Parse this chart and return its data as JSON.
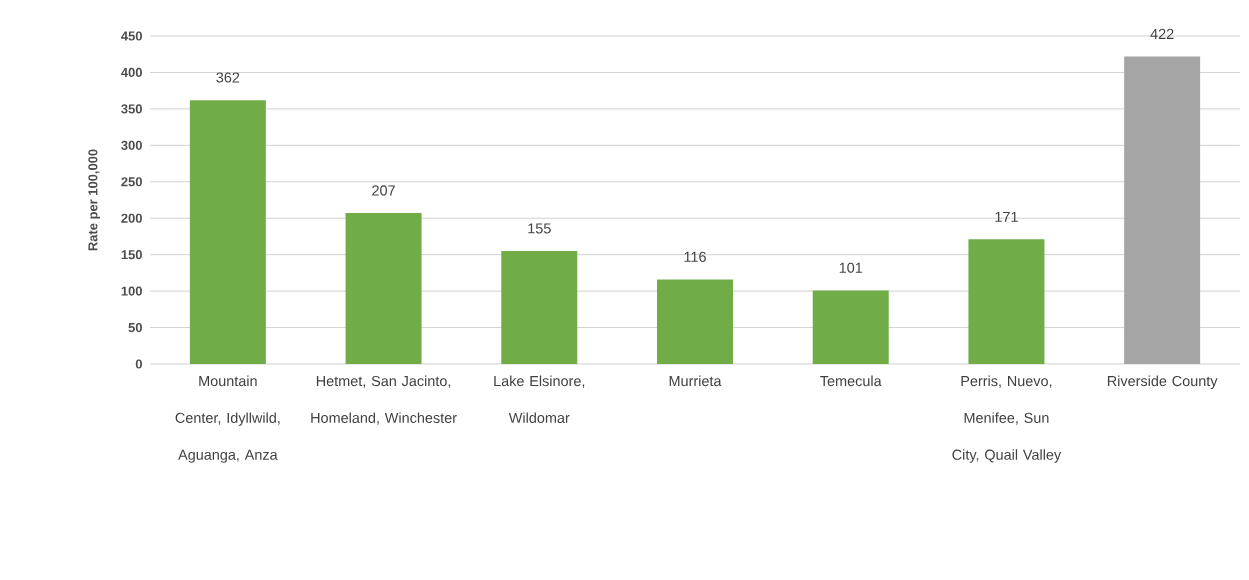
{
  "chart_data": {
    "type": "bar",
    "ylabel": "Rate per 100,000",
    "categories": [
      "Mountain Center, Idyllwild, Aguanga, Anza",
      "Hetmet, San Jacinto, Homeland, Winchester",
      "Lake Elsinore, Wildomar",
      "Murrieta",
      "Temecula",
      "Perris, Nuevo, Menifee, Sun City, Quail Valley",
      "Riverside County"
    ],
    "values": [
      362,
      207,
      155,
      116,
      101,
      171,
      422
    ],
    "colors": [
      "#70ad47",
      "#70ad47",
      "#70ad47",
      "#70ad47",
      "#70ad47",
      "#70ad47",
      "#a5a5a5"
    ],
    "ylim": [
      0,
      450
    ],
    "yticks": [
      0,
      50,
      100,
      150,
      200,
      250,
      300,
      350,
      400,
      450
    ],
    "grid": "y",
    "data_labels": true
  }
}
